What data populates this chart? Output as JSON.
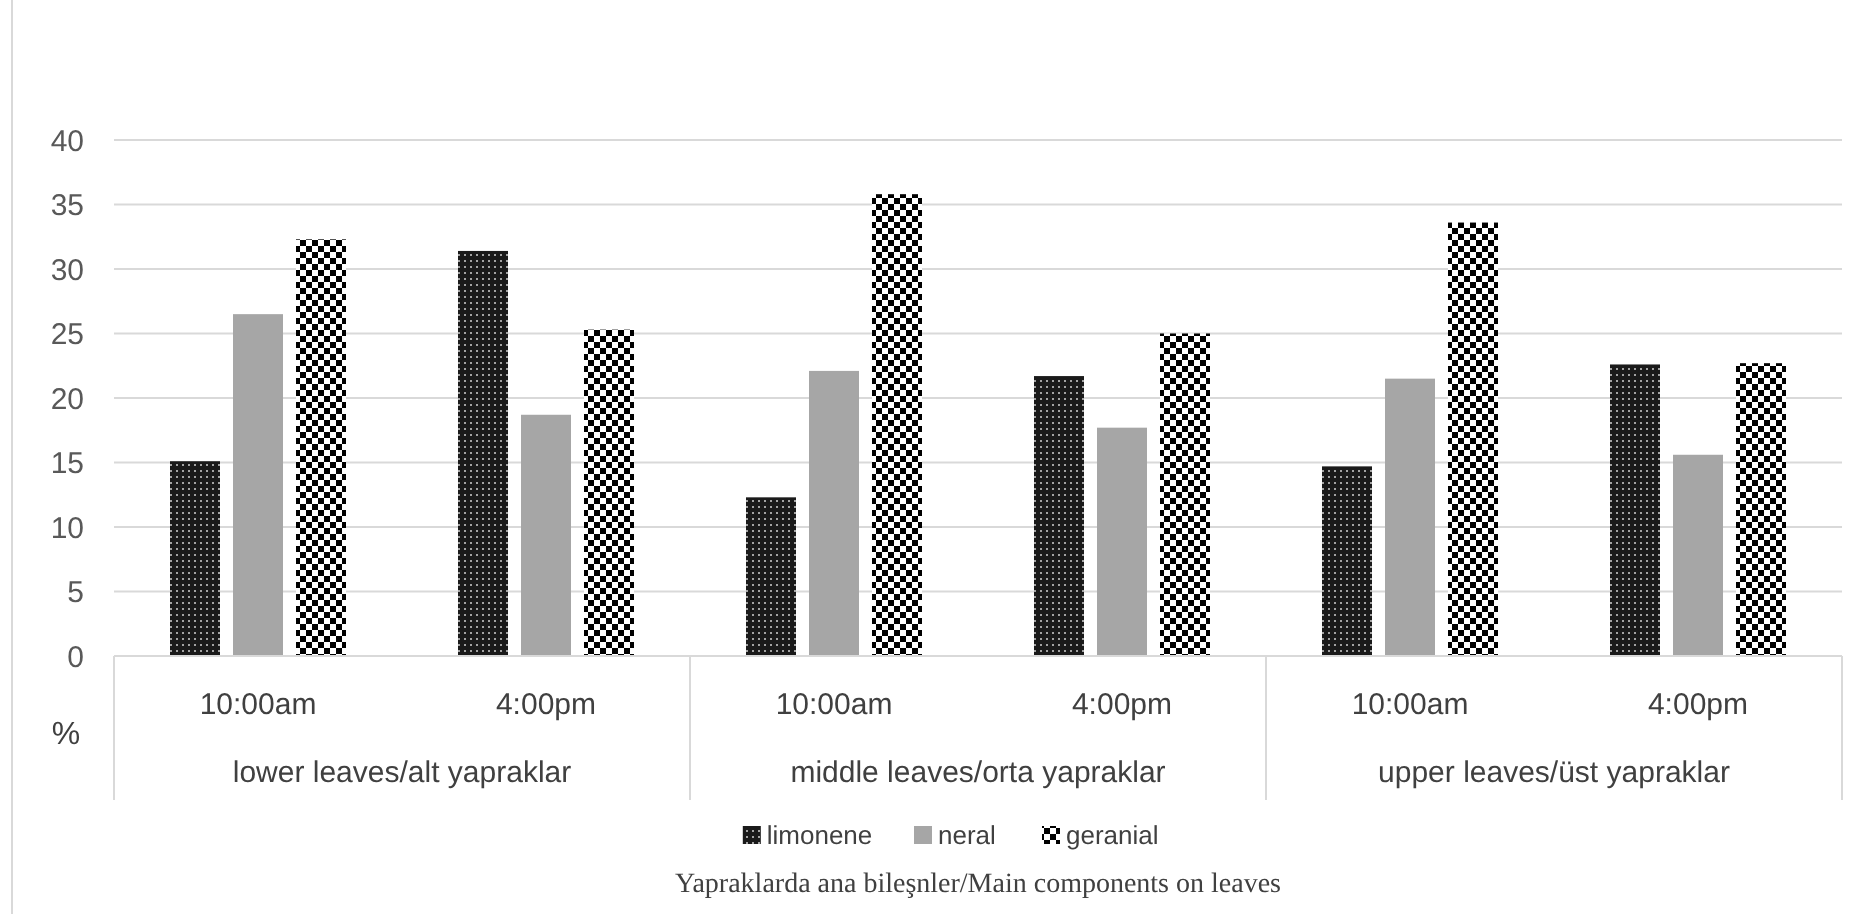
{
  "chart_data": {
    "type": "bar",
    "title": "Yapraklarda ana bileşnler/Main components on leaves",
    "ylabel": "%",
    "categories": [
      "10:00am",
      "4:00pm",
      "10:00am",
      "4:00pm",
      "10:00am",
      "4:00pm"
    ],
    "annotations": [
      "lower leaves/alt yapraklar",
      "middle leaves/orta yapraklar",
      "upper leaves/üst yapraklar"
    ],
    "series": [
      {
        "name": "limonene",
        "color": "#1a1a1a",
        "values": [
          15.1,
          31.4,
          12.3,
          21.7,
          14.7,
          22.6
        ]
      },
      {
        "name": "neral",
        "color": "#a6a6a6",
        "values": [
          26.5,
          18.7,
          22.1,
          17.7,
          21.5,
          15.6
        ]
      },
      {
        "name": "geranial",
        "color": "#000000",
        "values": [
          32.3,
          25.3,
          35.8,
          25.0,
          33.6,
          22.7
        ]
      }
    ],
    "ylim": [
      0,
      40
    ],
    "yticks": [
      0,
      5,
      10,
      15,
      20,
      25,
      30,
      35,
      40
    ],
    "grid": "y",
    "legend": "bottom"
  }
}
